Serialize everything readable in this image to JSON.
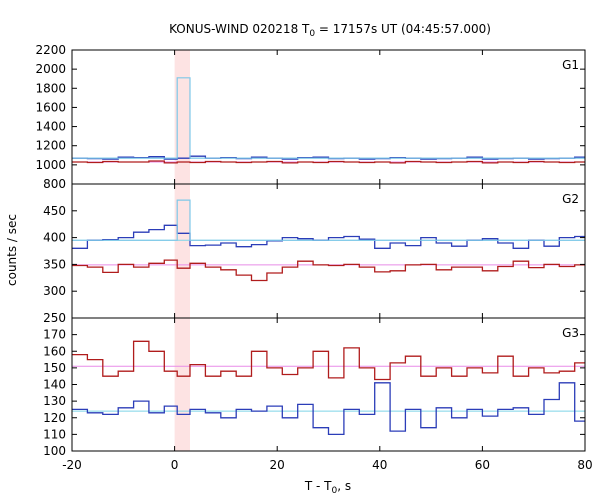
{
  "chart_data": {
    "type": "line",
    "title": "KONUS-WIND 020218 T",
    "title_sub": "0",
    "title_tail": " = 17157s UT (04:45:57.000)",
    "xlabel": "T - T",
    "xlabel_sub": "0",
    "xlabel_tail": ", s",
    "ylabel": "counts / sec",
    "xlim": [
      -20,
      80
    ],
    "xticks": [
      -20,
      0,
      20,
      40,
      60,
      80
    ],
    "highlight_band": [
      0,
      3
    ],
    "colors": {
      "highlight": "#fde3e3",
      "background_series": "#2b3db8",
      "foreground_series": "#b01c1c",
      "background_fit": "#7ed4e8",
      "foreground_fit": "#e88ce8",
      "peak_series": "#7ec8e8"
    },
    "panels": [
      {
        "label": "G1",
        "ylim": [
          800,
          2200
        ],
        "yticks": [
          800,
          1000,
          1200,
          1400,
          1600,
          1800,
          2000,
          2200
        ],
        "fits": [
          {
            "name": "blue-fit",
            "value": 1070
          },
          {
            "name": "red-fit",
            "value": 1030
          }
        ],
        "series": [
          {
            "name": "blue",
            "x": [
              -20,
              -17,
              -14,
              -11,
              -8,
              -5,
              -2,
              0.5,
              3,
              6,
              9,
              12,
              15,
              18,
              21,
              24,
              27,
              30,
              33,
              36,
              39,
              42,
              45,
              48,
              51,
              54,
              57,
              60,
              63,
              66,
              69,
              72,
              75,
              78,
              80
            ],
            "values": [
              1070,
              1065,
              1060,
              1080,
              1075,
              1085,
              1060,
              1070,
              1090,
              1070,
              1075,
              1065,
              1080,
              1070,
              1060,
              1075,
              1080,
              1065,
              1070,
              1060,
              1065,
              1075,
              1070,
              1060,
              1065,
              1070,
              1080,
              1060,
              1065,
              1070,
              1060,
              1065,
              1070,
              1080,
              1075
            ]
          },
          {
            "name": "red",
            "x": [
              -20,
              -17,
              -14,
              -11,
              -8,
              -5,
              -2,
              0.5,
              3,
              6,
              9,
              12,
              15,
              18,
              21,
              24,
              27,
              30,
              33,
              36,
              39,
              42,
              45,
              48,
              51,
              54,
              57,
              60,
              63,
              66,
              69,
              72,
              75,
              78,
              80
            ],
            "values": [
              1030,
              1025,
              1035,
              1030,
              1030,
              1040,
              1020,
              1030,
              1025,
              1035,
              1030,
              1025,
              1030,
              1035,
              1020,
              1030,
              1025,
              1035,
              1030,
              1025,
              1030,
              1020,
              1035,
              1030,
              1025,
              1030,
              1035,
              1020,
              1030,
              1025,
              1035,
              1030,
              1025,
              1030,
              1030
            ]
          },
          {
            "name": "peak",
            "x": [
              -20,
              0.5,
              3,
              80
            ],
            "values": [
              1070,
              1910,
              1070,
              1070
            ]
          }
        ]
      },
      {
        "label": "G2",
        "ylim": [
          250,
          500
        ],
        "yticks": [
          250,
          300,
          350,
          400,
          450
        ],
        "fits": [
          {
            "name": "blue-fit",
            "value": 395
          },
          {
            "name": "red-fit",
            "value": 349
          }
        ],
        "series": [
          {
            "name": "blue",
            "x": [
              -20,
              -17,
              -14,
              -11,
              -8,
              -5,
              -2,
              0.5,
              3,
              6,
              9,
              12,
              15,
              18,
              21,
              24,
              27,
              30,
              33,
              36,
              39,
              42,
              45,
              48,
              51,
              54,
              57,
              60,
              63,
              66,
              69,
              72,
              75,
              78,
              80
            ],
            "values": [
              380,
              395,
              396,
              400,
              410,
              415,
              423,
              408,
              385,
              386,
              390,
              383,
              387,
              394,
              400,
              398,
              395,
              400,
              402,
              397,
              380,
              390,
              385,
              400,
              390,
              384,
              395,
              398,
              390,
              380,
              395,
              384,
              400,
              402,
              403
            ]
          },
          {
            "name": "red",
            "x": [
              -20,
              -17,
              -14,
              -11,
              -8,
              -5,
              -2,
              0.5,
              3,
              6,
              9,
              12,
              15,
              18,
              21,
              24,
              27,
              30,
              33,
              36,
              39,
              42,
              45,
              48,
              51,
              54,
              57,
              60,
              63,
              66,
              69,
              72,
              75,
              78,
              80
            ],
            "values": [
              348,
              345,
              335,
              350,
              345,
              352,
              358,
              343,
              352,
              345,
              340,
              330,
              320,
              334,
              345,
              356,
              349,
              348,
              350,
              345,
              336,
              338,
              349,
              350,
              340,
              345,
              345,
              338,
              346,
              356,
              344,
              350,
              346,
              349,
              348
            ]
          },
          {
            "name": "peak",
            "x": [
              -20,
              0.5,
              3,
              80
            ],
            "values": [
              395,
              470,
              395,
              395
            ]
          }
        ]
      },
      {
        "label": "G3",
        "ylim": [
          100,
          180
        ],
        "yticks": [
          100,
          110,
          120,
          130,
          140,
          150,
          160,
          170
        ],
        "fits": [
          {
            "name": "blue-fit",
            "value": 124
          },
          {
            "name": "red-fit",
            "value": 151
          }
        ],
        "series": [
          {
            "name": "blue",
            "x": [
              -20,
              -17,
              -14,
              -11,
              -8,
              -5,
              -2,
              0.5,
              3,
              6,
              9,
              12,
              15,
              18,
              21,
              24,
              27,
              30,
              33,
              36,
              39,
              42,
              45,
              48,
              51,
              54,
              57,
              60,
              63,
              66,
              69,
              72,
              75,
              78,
              80
            ],
            "values": [
              125,
              123,
              122,
              126,
              130,
              123,
              127,
              122,
              125,
              123,
              120,
              125,
              124,
              127,
              120,
              128,
              114,
              110,
              125,
              122,
              141,
              112,
              125,
              114,
              126,
              120,
              125,
              121,
              125,
              126,
              122,
              131,
              141,
              118,
              113
            ]
          },
          {
            "name": "red",
            "x": [
              -20,
              -17,
              -14,
              -11,
              -8,
              -5,
              -2,
              0.5,
              3,
              6,
              9,
              12,
              15,
              18,
              21,
              24,
              27,
              30,
              33,
              36,
              39,
              42,
              45,
              48,
              51,
              54,
              57,
              60,
              63,
              66,
              69,
              72,
              75,
              78,
              80
            ],
            "values": [
              158,
              155,
              145,
              148,
              166,
              160,
              148,
              145,
              152,
              145,
              148,
              145,
              160,
              150,
              146,
              150,
              160,
              144,
              162,
              150,
              143,
              153,
              157,
              145,
              150,
              145,
              150,
              147,
              157,
              145,
              150,
              147,
              148,
              153,
              149
            ]
          }
        ]
      }
    ]
  }
}
